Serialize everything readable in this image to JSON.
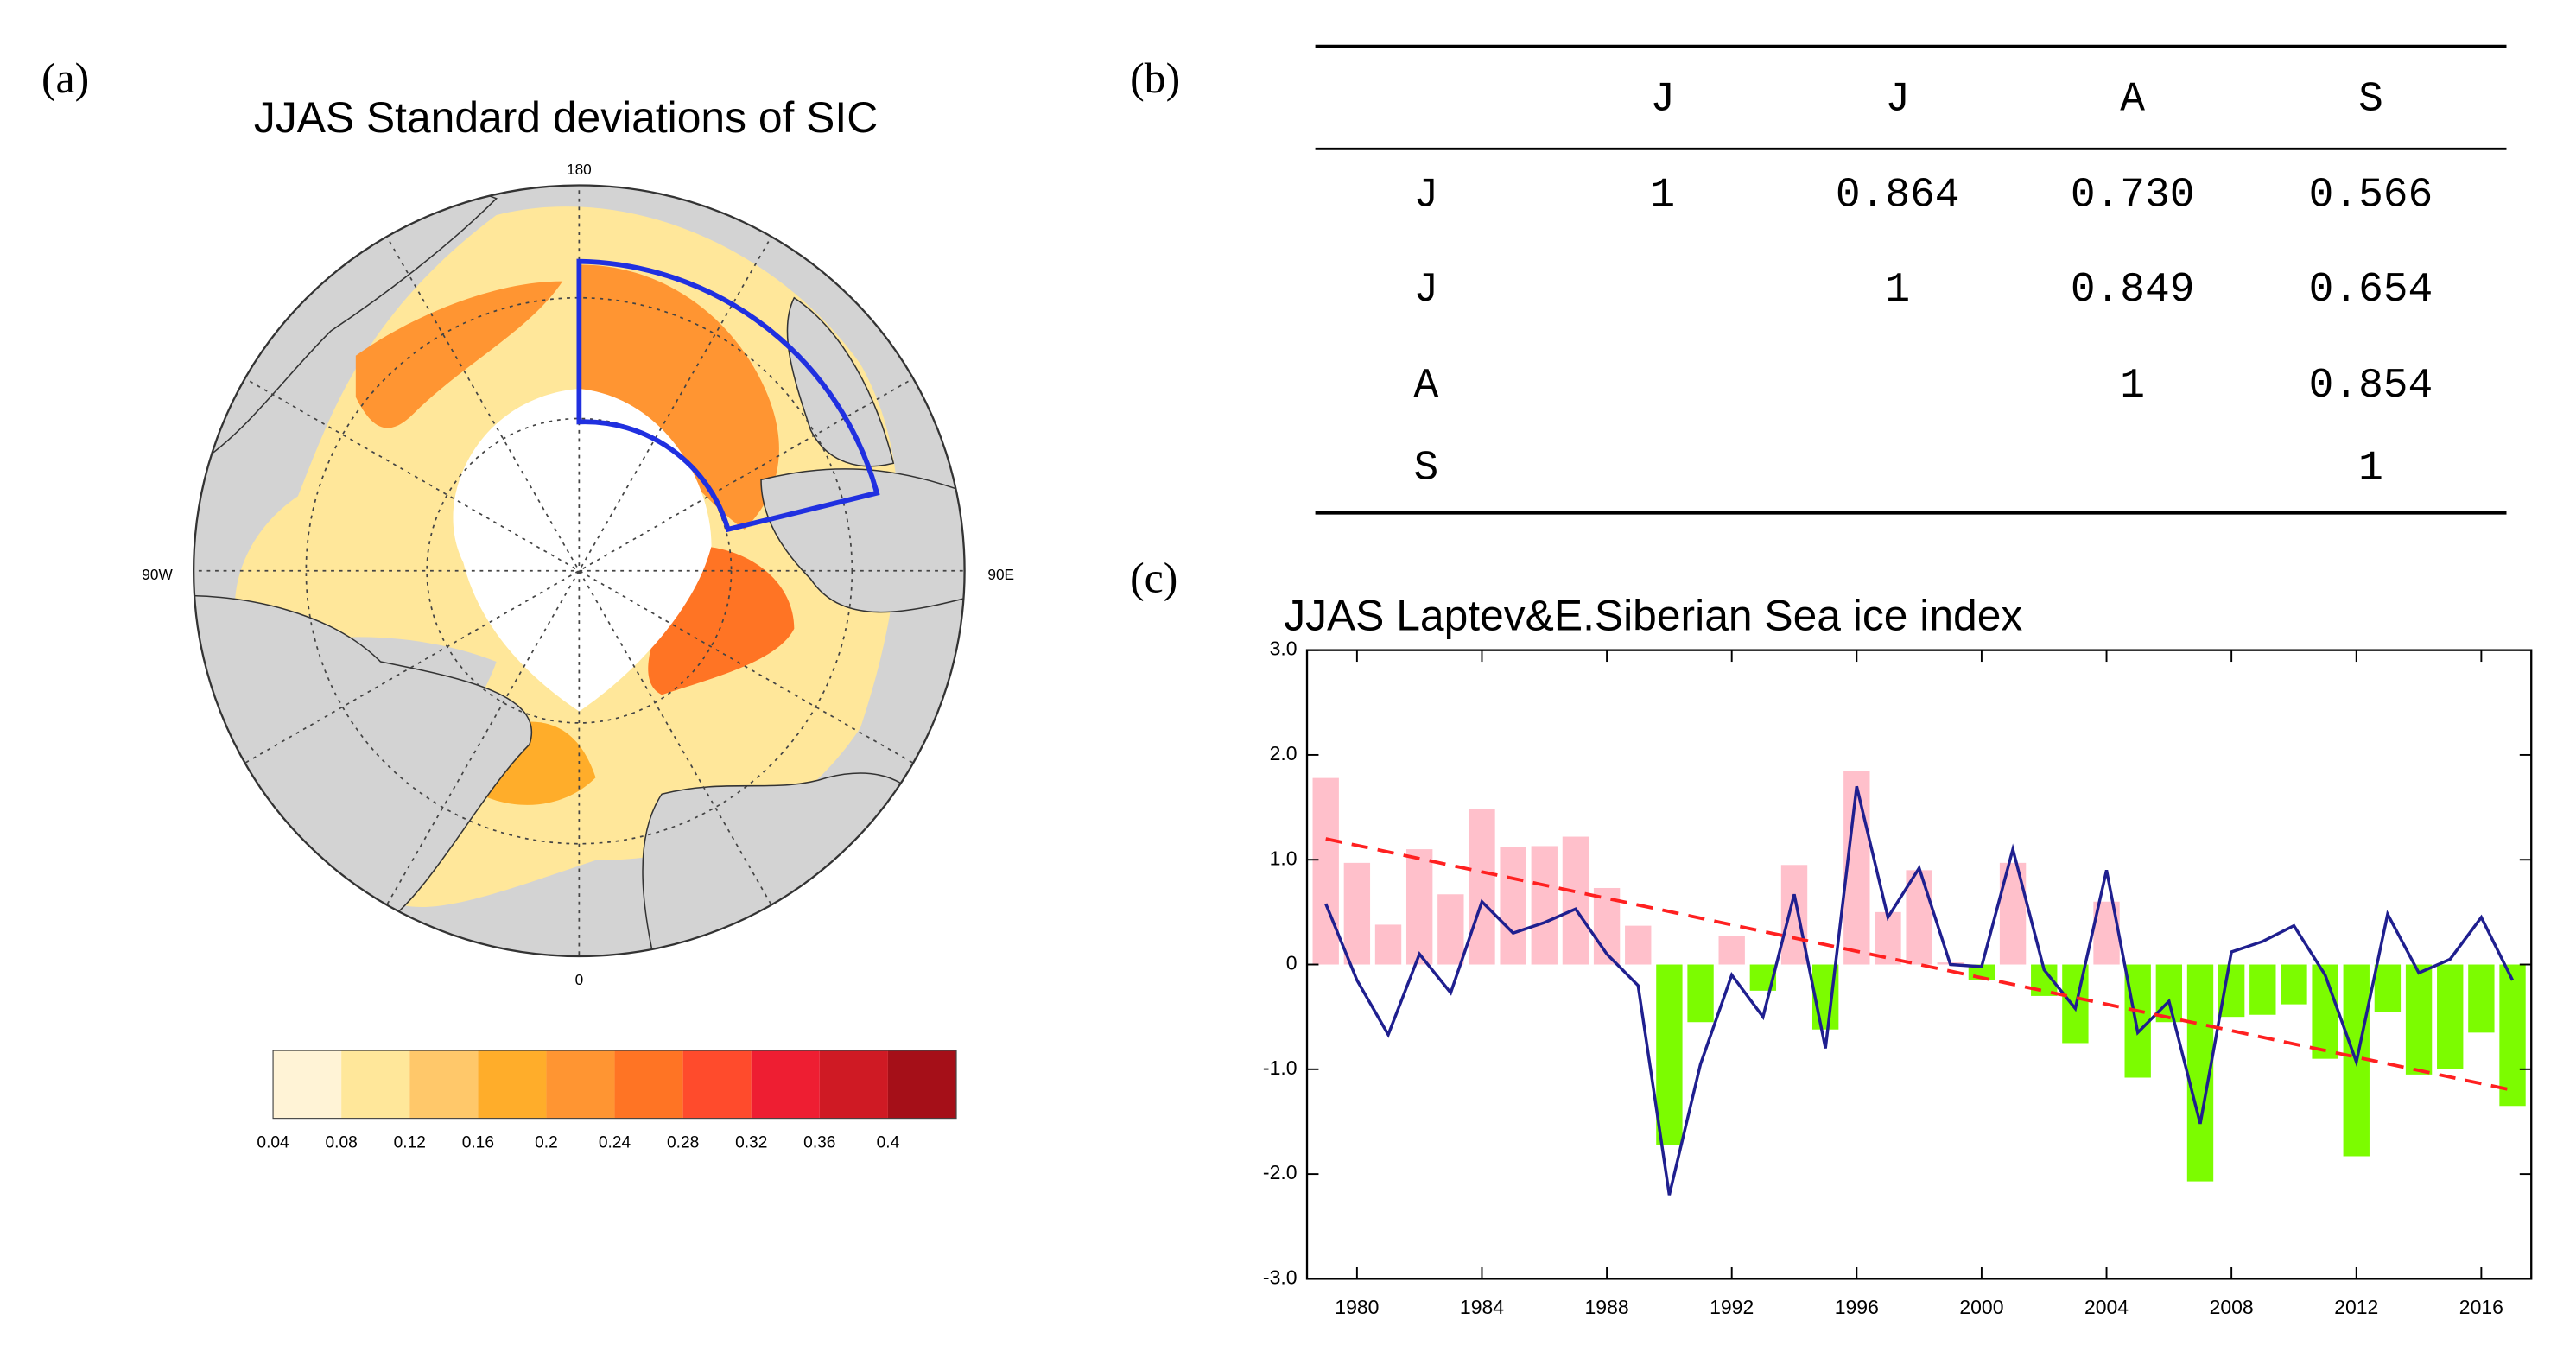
{
  "panels": {
    "a": "(a)",
    "b": "(b)",
    "c": "(c)"
  },
  "map": {
    "title": "JJAS Standard deviations of SIC",
    "lon_labels": {
      "top": "180",
      "right": "90E",
      "bottom": "0",
      "left": "90W"
    },
    "colorbar": {
      "colors": [
        "#fff3d6",
        "#ffe79a",
        "#ffc86a",
        "#ffad2a",
        "#ff9532",
        "#ff7424",
        "#ff4b2c",
        "#ee1e32",
        "#cf1a24",
        "#a50f18"
      ],
      "ticks": [
        0.04,
        0.08,
        0.12,
        0.16,
        0.2,
        0.24,
        0.28,
        0.32,
        0.36,
        0.4
      ]
    }
  },
  "table": {
    "columns": [
      "J",
      "J",
      "A",
      "S"
    ],
    "rows": [
      {
        "label": "J",
        "cells": [
          "1",
          "0.864",
          "0.730",
          "0.566"
        ]
      },
      {
        "label": "J",
        "cells": [
          null,
          "1",
          "0.849",
          "0.654"
        ]
      },
      {
        "label": "A",
        "cells": [
          null,
          null,
          "1",
          "0.854"
        ]
      },
      {
        "label": "S",
        "cells": [
          null,
          null,
          null,
          "1"
        ]
      }
    ]
  },
  "chart_data": {
    "type": "bar",
    "title": "JJAS Laptev&E.Siberian Sea ice index",
    "x": [
      1979,
      1980,
      1981,
      1982,
      1983,
      1984,
      1985,
      1986,
      1987,
      1988,
      1989,
      1990,
      1991,
      1992,
      1993,
      1994,
      1995,
      1996,
      1997,
      1998,
      1999,
      2000,
      2001,
      2002,
      2003,
      2004,
      2005,
      2006,
      2007,
      2008,
      2009,
      2010,
      2011,
      2012,
      2013,
      2014,
      2015,
      2016,
      2017
    ],
    "series": [
      {
        "type": "bar",
        "color": "#ffc0cb",
        "negative_color": "#7cfc00",
        "values": [
          1.78,
          0.97,
          0.38,
          1.1,
          0.67,
          1.48,
          1.12,
          1.13,
          1.22,
          0.73,
          0.37,
          -1.72,
          -0.55,
          0.27,
          -0.25,
          0.95,
          -0.62,
          1.85,
          0.5,
          0.9,
          0.02,
          -0.15,
          0.97,
          -0.3,
          -0.75,
          0.6,
          -1.08,
          -0.55,
          -2.07,
          -0.5,
          -0.48,
          -0.38,
          -0.9,
          -1.83,
          -0.45,
          -1.05,
          -1.0,
          -0.65,
          -1.35
        ]
      },
      {
        "type": "line",
        "color": "#1f1f8f",
        "values": [
          0.58,
          -0.15,
          -0.67,
          0.1,
          -0.27,
          0.6,
          0.3,
          0.4,
          0.53,
          0.1,
          -0.2,
          -2.2,
          -0.95,
          -0.1,
          -0.5,
          0.67,
          -0.8,
          1.7,
          0.45,
          0.92,
          0.0,
          -0.02,
          1.1,
          -0.05,
          -0.42,
          0.9,
          -0.65,
          -0.35,
          -1.52,
          0.12,
          0.22,
          0.37,
          -0.1,
          -0.93,
          0.48,
          -0.08,
          0.05,
          0.45,
          -0.15
        ]
      },
      {
        "type": "line",
        "color": "#ff2020",
        "dashed": true,
        "x": [
          1979,
          2017
        ],
        "values": [
          1.2,
          -1.2
        ]
      }
    ],
    "xlim": [
      1978.4,
      2017.6
    ],
    "xticks": [
      1980,
      1984,
      1988,
      1992,
      1996,
      2000,
      2004,
      2008,
      2012,
      2016
    ],
    "ylim": [
      -3,
      3
    ],
    "yticks": [
      {
        "value": -3,
        "label": "-3.0"
      },
      {
        "value": -2,
        "label": "-2.0"
      },
      {
        "value": -1,
        "label": "-1.0"
      },
      0,
      {
        "value": 1,
        "label": "1.0"
      },
      {
        "value": 2,
        "label": "2.0"
      },
      {
        "value": 3,
        "label": "3.0"
      }
    ]
  }
}
